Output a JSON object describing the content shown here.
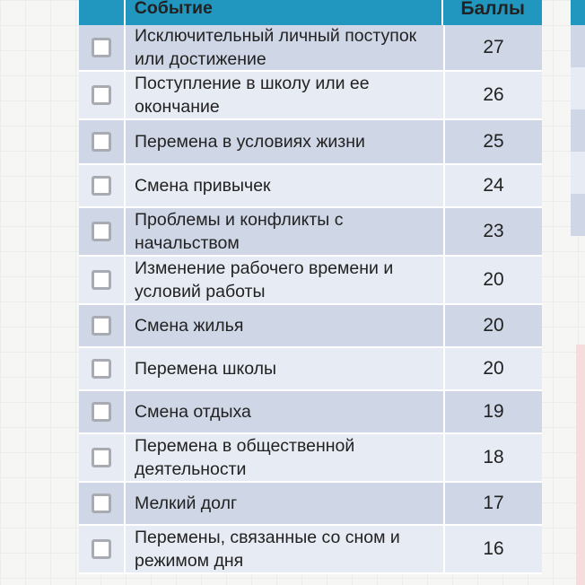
{
  "table": {
    "header": {
      "event": "Событие",
      "score": "Баллы"
    },
    "rows": [
      {
        "event": "Исключительный личный поступок или достижение",
        "score": "27"
      },
      {
        "event": "Поступление в школу или ее окончание",
        "score": "26"
      },
      {
        "event": "Перемена в условиях жизни",
        "score": "25"
      },
      {
        "event": "Смена привычек",
        "score": "24"
      },
      {
        "event": "Проблемы и конфликты с начальством",
        "score": "23"
      },
      {
        "event": "Изменение рабочего времени и условий работы",
        "score": "20"
      },
      {
        "event": "Смена жилья",
        "score": "20"
      },
      {
        "event": "Перемена школы",
        "score": "20"
      },
      {
        "event": "Смена отдыха",
        "score": "19"
      },
      {
        "event": "Перемена в общественной деятельности",
        "score": "18"
      },
      {
        "event": "Мелкий долг",
        "score": "17"
      },
      {
        "event": "Перемены, связанные со сном и режимом дня",
        "score": "16"
      }
    ]
  },
  "colors": {
    "header_bg": "#2196bf",
    "row_dark": "#cfd6e6",
    "row_light": "#e7ebf3"
  }
}
